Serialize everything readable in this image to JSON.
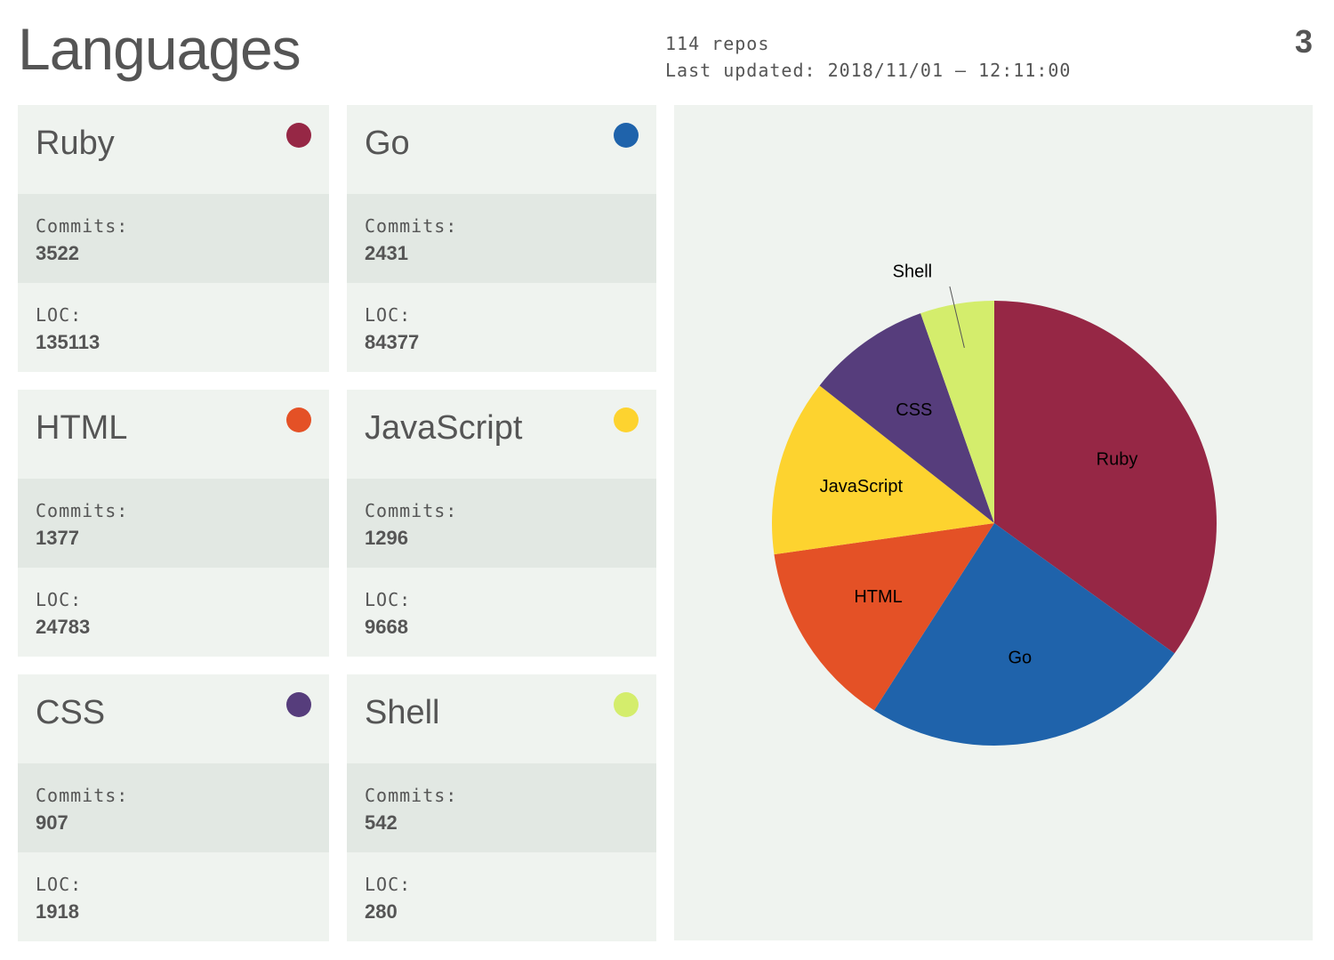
{
  "header": {
    "title": "Languages",
    "repos": "114 repos",
    "last_updated": "Last updated: 2018/11/01 – 12:11:00",
    "page_number": "3"
  },
  "labels": {
    "commits": "Commits:",
    "loc": "LOC:"
  },
  "languages": [
    {
      "name": "Ruby",
      "color": "#962745",
      "commits": "3522",
      "loc": "135113"
    },
    {
      "name": "Go",
      "color": "#1f63ab",
      "commits": "2431",
      "loc": "84377"
    },
    {
      "name": "HTML",
      "color": "#e45126",
      "commits": "1377",
      "loc": "24783"
    },
    {
      "name": "JavaScript",
      "color": "#fdd32f",
      "commits": "1296",
      "loc": "9668"
    },
    {
      "name": "CSS",
      "color": "#563d7c",
      "commits": "907",
      "loc": "1918"
    },
    {
      "name": "Shell",
      "color": "#d4ed6c",
      "commits": "542",
      "loc": "280"
    }
  ],
  "chart_data": {
    "type": "pie",
    "categories": [
      "Ruby",
      "Go",
      "HTML",
      "JavaScript",
      "CSS",
      "Shell"
    ],
    "values": [
      3522,
      2431,
      1377,
      1296,
      907,
      542
    ],
    "colors": [
      "#962745",
      "#1f63ab",
      "#e45126",
      "#fdd32f",
      "#563d7c",
      "#d4ed6c"
    ],
    "start_angle": "12 o'clock",
    "direction": "clockwise",
    "legend": "none"
  }
}
